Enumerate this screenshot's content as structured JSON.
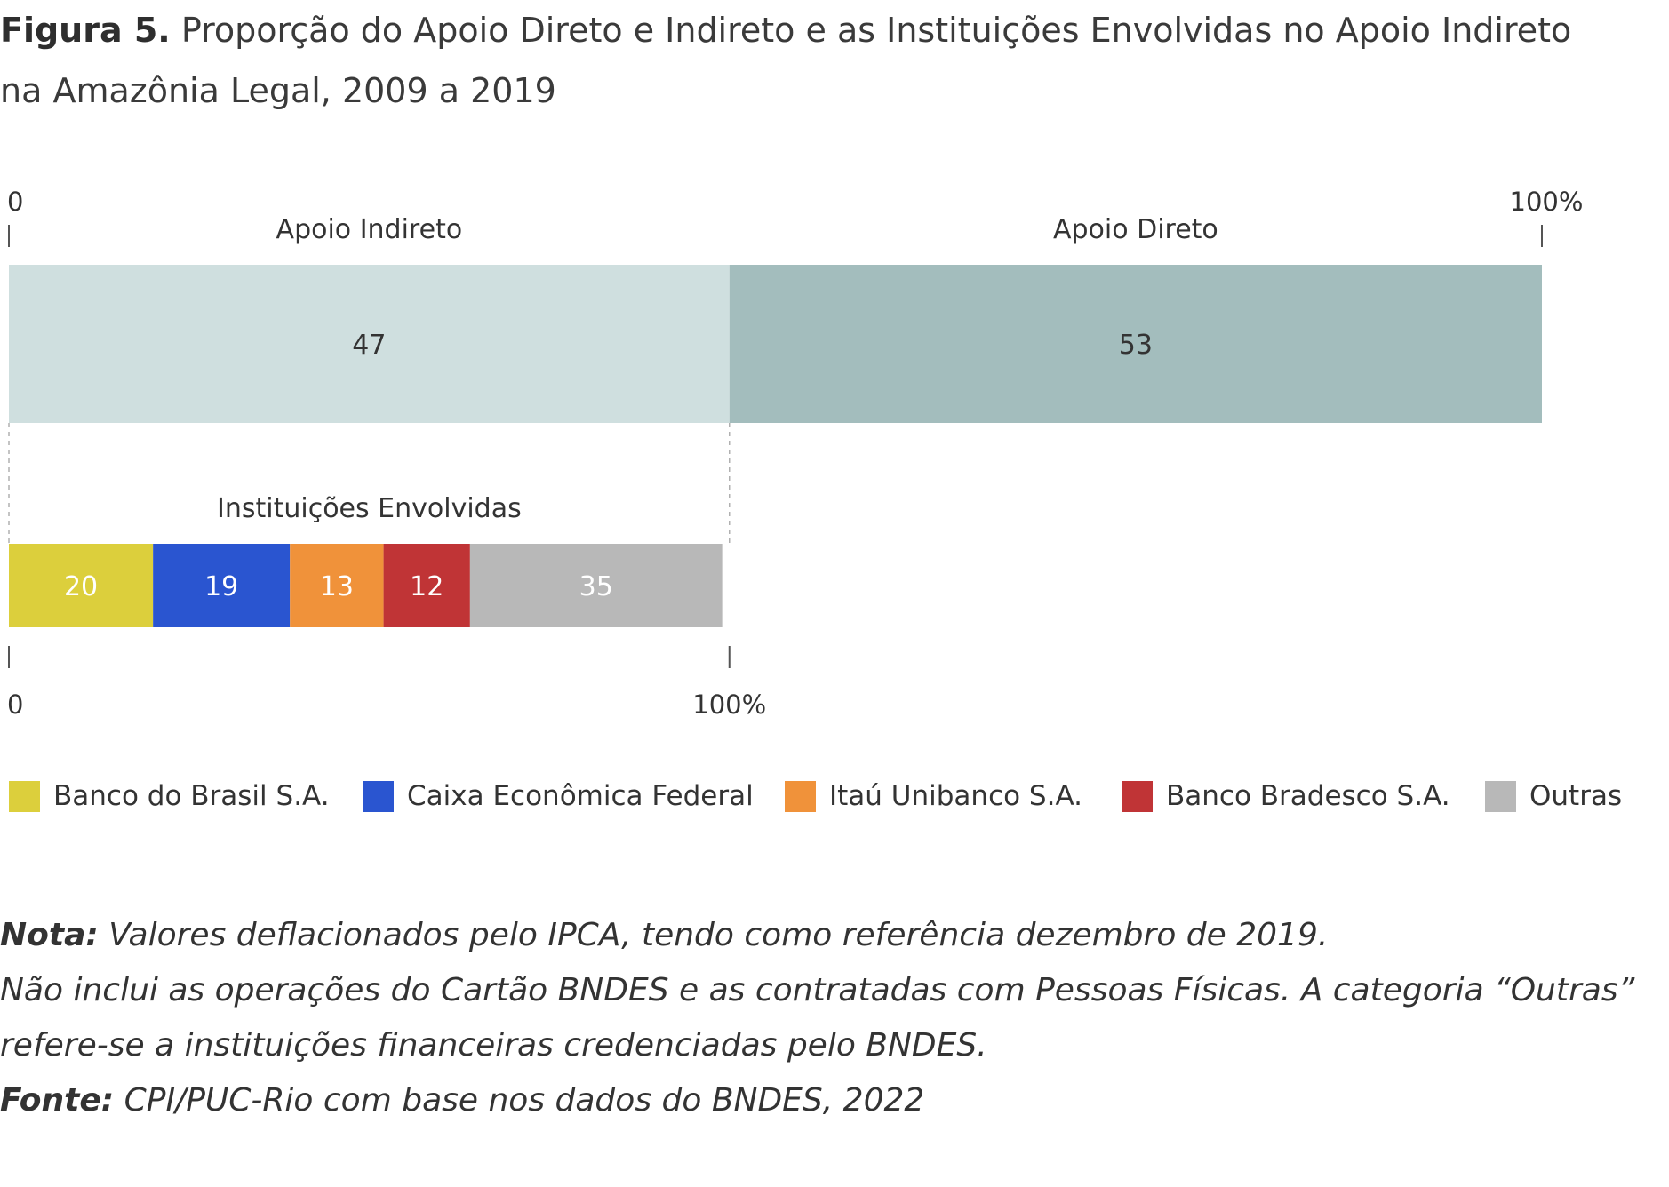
{
  "title": {
    "figure": "Figura 5.",
    "line1": "Proporção do Apoio Direto e Indireto e as Instituições Envolvidas no Apoio Indireto",
    "line2": "na Amazônia Legal, 2009 a 2019"
  },
  "chart_data": [
    {
      "type": "bar",
      "orientation": "horizontal",
      "stacked": true,
      "axis_min_label": "0",
      "axis_max_label": "100%",
      "xlim": [
        0,
        100
      ],
      "series": [
        {
          "name": "Apoio Indireto",
          "value": 47,
          "color": "#cfdfdf"
        },
        {
          "name": "Apoio Direto",
          "value": 53,
          "color": "#a3bdbd"
        }
      ]
    },
    {
      "type": "bar",
      "orientation": "horizontal",
      "stacked": true,
      "title": "Instituições Envolvidas",
      "axis_min_label": "0",
      "axis_max_label": "100%",
      "xlim": [
        0,
        100
      ],
      "series": [
        {
          "name": "Banco do Brasil S.A.",
          "value": 20,
          "color": "#dccf3c"
        },
        {
          "name": "Caixa Econômica Federal",
          "value": 19,
          "color": "#2a55d0"
        },
        {
          "name": "Itaú Unibanco S.A.",
          "value": 13,
          "color": "#f0923a"
        },
        {
          "name": "Banco Bradesco S.A.",
          "value": 12,
          "color": "#c03436"
        },
        {
          "name": "Outras",
          "value": 35,
          "color": "#b8b8b8"
        }
      ]
    }
  ],
  "legend": [
    {
      "label": "Banco do Brasil S.A.",
      "color": "#dccf3c"
    },
    {
      "label": "Caixa Econômica Federal",
      "color": "#2a55d0"
    },
    {
      "label": "Itaú Unibanco S.A.",
      "color": "#f0923a"
    },
    {
      "label": "Banco Bradesco S.A.",
      "color": "#c03436"
    },
    {
      "label": "Outras",
      "color": "#b8b8b8"
    }
  ],
  "notes": {
    "nota_label": "Nota:",
    "nota_text": " Valores deflacionados pelo IPCA, tendo como referência dezembro de 2019.",
    "line2": "Não inclui as operações do Cartão BNDES e as contratadas com Pessoas Físicas. A categoria “Outras”",
    "line3": "refere-se a instituições financeiras credenciadas pelo BNDES.",
    "fonte_label": "Fonte:",
    "fonte_text": " CPI/PUC-Rio com base nos dados do BNDES, 2022"
  }
}
